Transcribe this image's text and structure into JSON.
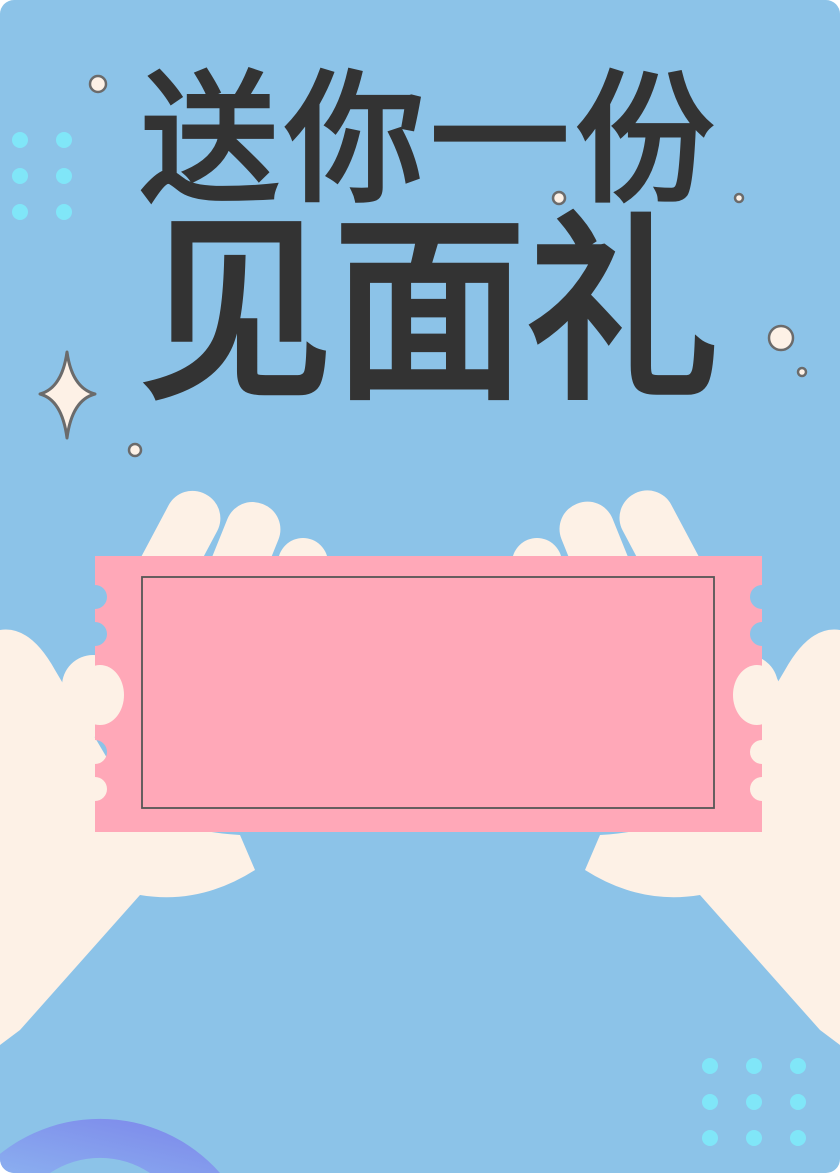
{
  "poster": {
    "title_line_1": "送你一份",
    "title_line_2": "见面礼"
  },
  "colors": {
    "background": "#8cc3e8",
    "title": "#333333",
    "ticket": "#ffa8b8",
    "hands": "#fdf1e6",
    "dots": "#80e6f8",
    "arc_gradient": [
      "#7c8cea",
      "#7bb8ee"
    ],
    "sparkle": "#fdf1e6"
  },
  "icons": [
    "sparkle-icon",
    "gift-ticket",
    "hand-left",
    "hand-right"
  ]
}
